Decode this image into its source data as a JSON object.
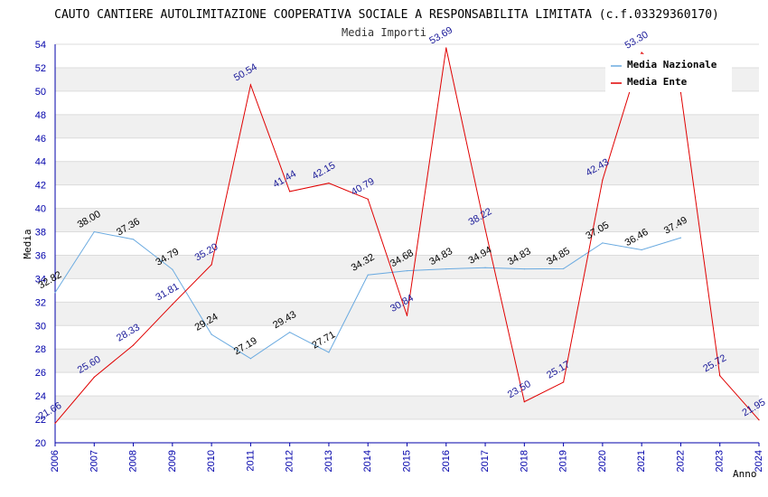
{
  "chart_data": {
    "type": "line",
    "title": "CAUTO CANTIERE AUTOLIMITAZIONE COOPERATIVA SOCIALE A RESPONSABILITA LIMITATA (c.f.03329360170)",
    "subtitle": "Media Importi",
    "xlabel": "Anno",
    "ylabel": "Media",
    "ylim": [
      20,
      54
    ],
    "ytick_step": 2,
    "x": [
      "2006",
      "2007",
      "2008",
      "2009",
      "2010",
      "2011",
      "2012",
      "2013",
      "2014",
      "2015",
      "2016",
      "2017",
      "2018",
      "2019",
      "2020",
      "2021",
      "2022",
      "2023",
      "2024"
    ],
    "series": [
      {
        "name": "Media Nazionale",
        "color": "#6aaae0",
        "values": [
          32.82,
          38.0,
          37.36,
          34.79,
          29.24,
          27.19,
          29.43,
          27.71,
          34.32,
          34.68,
          34.83,
          34.94,
          34.83,
          34.85,
          37.05,
          36.46,
          37.49,
          null,
          null
        ],
        "labels": [
          "32.82",
          "38.00",
          "37.36",
          "34.79",
          "29.24",
          "27.19",
          "29.43",
          "27.71",
          "34.32",
          "34.68",
          "34.83",
          "34.94",
          "34.83",
          "34.85",
          "37.05",
          "36.46",
          "37.49",
          null,
          null
        ]
      },
      {
        "name": "Media Ente",
        "color": "#e00000",
        "values": [
          21.66,
          25.6,
          28.33,
          31.81,
          35.2,
          50.54,
          41.44,
          42.15,
          40.79,
          30.84,
          53.69,
          38.22,
          23.5,
          25.17,
          42.43,
          53.3,
          49.9,
          25.72,
          21.95
        ],
        "labels": [
          "21.66",
          "25.60",
          "28.33",
          "31.81",
          "35.20",
          "50.54",
          "41.44",
          "42.15",
          "40.79",
          "30.84",
          "53.69",
          "38.22",
          "23.50",
          "25.17",
          "42.43",
          "53.30",
          null,
          "25.72",
          "21.95"
        ]
      }
    ],
    "legend": {
      "position": "top-right"
    }
  }
}
